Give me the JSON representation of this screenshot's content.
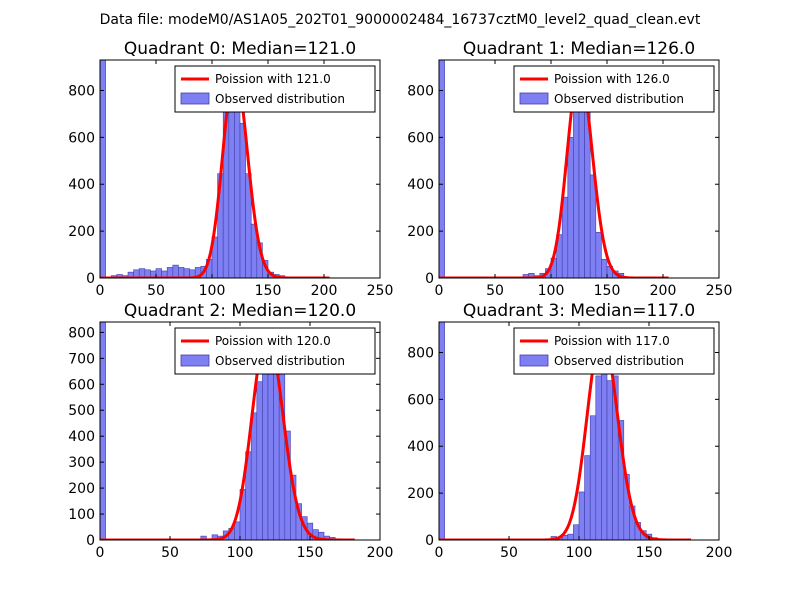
{
  "suptitle": "Data file: modeM0/AS1A05_202T01_9000002484_16737cztM0_level2_quad_clean.evt",
  "colors": {
    "hist_fill": "#7f7ff4",
    "hist_edge": "#3f3fa8",
    "poisson_line": "#ff0000",
    "axes": "#000000"
  },
  "chart_data": [
    {
      "type": "bar",
      "title": "Quadrant 0: Median=121.0",
      "median": 121.0,
      "xlim": [
        0,
        250
      ],
      "ylim": [
        0,
        930
      ],
      "xticks": [
        0,
        50,
        100,
        150,
        200,
        250
      ],
      "yticks": [
        0,
        200,
        400,
        600,
        800
      ],
      "legend": {
        "location": "top-right",
        "labels": [
          "Poission with 121.0",
          "Observed distribution"
        ]
      },
      "poisson": {
        "mean": 121.0,
        "peak": 880,
        "x_range": [
          0,
          205
        ]
      },
      "histogram": {
        "bin_width": 5,
        "bin_starts": [
          0,
          5,
          10,
          15,
          20,
          25,
          30,
          35,
          40,
          45,
          50,
          55,
          60,
          65,
          70,
          75,
          80,
          85,
          90,
          95,
          100,
          105,
          110,
          115,
          120,
          125,
          130,
          135,
          140,
          145,
          150,
          155,
          160,
          165,
          170,
          175,
          180,
          185,
          190,
          195,
          200,
          205
        ],
        "values": [
          930,
          0,
          10,
          15,
          10,
          25,
          35,
          40,
          35,
          30,
          40,
          30,
          45,
          55,
          45,
          40,
          35,
          45,
          50,
          80,
          175,
          445,
          735,
          860,
          880,
          660,
          445,
          230,
          150,
          75,
          25,
          15,
          10,
          5,
          5,
          0,
          0,
          0,
          0,
          0,
          0,
          0
        ]
      }
    },
    {
      "type": "bar",
      "title": "Quadrant 1: Median=126.0",
      "median": 126.0,
      "xlim": [
        0,
        250
      ],
      "ylim": [
        0,
        930
      ],
      "xticks": [
        0,
        50,
        100,
        150,
        200,
        250
      ],
      "yticks": [
        0,
        200,
        400,
        600,
        800
      ],
      "legend": {
        "location": "top-right",
        "labels": [
          "Poission with 126.0",
          "Observed distribution"
        ]
      },
      "poisson": {
        "mean": 126.0,
        "peak": 880,
        "x_range": [
          0,
          205
        ]
      },
      "histogram": {
        "bin_width": 5,
        "bin_starts": [
          0,
          5,
          10,
          15,
          20,
          25,
          30,
          35,
          40,
          45,
          50,
          55,
          60,
          65,
          70,
          75,
          80,
          85,
          90,
          95,
          100,
          105,
          110,
          115,
          120,
          125,
          130,
          135,
          140,
          145,
          150,
          155,
          160,
          165,
          170,
          175,
          180,
          185,
          190,
          195,
          200,
          205
        ],
        "values": [
          930,
          0,
          0,
          0,
          0,
          0,
          0,
          0,
          0,
          0,
          0,
          0,
          0,
          0,
          0,
          15,
          20,
          10,
          20,
          40,
          85,
          185,
          345,
          600,
          830,
          880,
          740,
          440,
          195,
          80,
          50,
          30,
          20,
          5,
          0,
          0,
          0,
          0,
          0,
          0,
          0,
          0
        ]
      }
    },
    {
      "type": "bar",
      "title": "Quadrant 2: Median=120.0",
      "median": 120.0,
      "xlim": [
        0,
        200
      ],
      "ylim": [
        0,
        840
      ],
      "xticks": [
        0,
        50,
        100,
        150,
        200
      ],
      "yticks": [
        0,
        100,
        200,
        300,
        400,
        500,
        600,
        700,
        800
      ],
      "legend": {
        "location": "top-right",
        "labels": [
          "Poission with 120.0",
          "Observed distribution"
        ]
      },
      "poisson": {
        "mean": 120.0,
        "peak": 800,
        "x_range": [
          0,
          182
        ]
      },
      "histogram": {
        "bin_width": 4,
        "bin_starts": [
          0,
          4,
          8,
          12,
          16,
          20,
          24,
          28,
          32,
          36,
          40,
          44,
          48,
          52,
          56,
          60,
          64,
          68,
          72,
          76,
          80,
          84,
          88,
          92,
          96,
          100,
          104,
          108,
          112,
          116,
          120,
          124,
          128,
          132,
          136,
          140,
          144,
          148,
          152,
          156,
          160,
          164,
          168,
          172,
          176,
          180
        ],
        "values": [
          840,
          0,
          0,
          0,
          0,
          0,
          0,
          0,
          0,
          0,
          0,
          0,
          0,
          0,
          0,
          0,
          0,
          0,
          15,
          5,
          20,
          15,
          35,
          45,
          70,
          195,
          340,
          490,
          610,
          740,
          790,
          760,
          690,
          420,
          250,
          140,
          90,
          65,
          40,
          30,
          15,
          10,
          5,
          0,
          0,
          0
        ]
      }
    },
    {
      "type": "bar",
      "title": "Quadrant 3: Median=117.0",
      "median": 117.0,
      "xlim": [
        0,
        200
      ],
      "ylim": [
        0,
        930
      ],
      "xticks": [
        0,
        50,
        100,
        150,
        200
      ],
      "yticks": [
        0,
        200,
        400,
        600,
        800
      ],
      "legend": {
        "location": "top-right",
        "labels": [
          "Poission with 117.0",
          "Observed distribution"
        ]
      },
      "poisson": {
        "mean": 117.0,
        "peak": 880,
        "x_range": [
          0,
          180
        ]
      },
      "histogram": {
        "bin_width": 4,
        "bin_starts": [
          0,
          4,
          8,
          12,
          16,
          20,
          24,
          28,
          32,
          36,
          40,
          44,
          48,
          52,
          56,
          60,
          64,
          68,
          72,
          76,
          80,
          84,
          88,
          92,
          96,
          100,
          104,
          108,
          112,
          116,
          120,
          124,
          128,
          132,
          136,
          140,
          144,
          148,
          152,
          156,
          160,
          164,
          168,
          172,
          176,
          180
        ],
        "values": [
          930,
          0,
          0,
          0,
          0,
          0,
          0,
          0,
          0,
          0,
          0,
          0,
          0,
          0,
          0,
          0,
          0,
          0,
          0,
          0,
          15,
          10,
          20,
          25,
          65,
          205,
          360,
          530,
          700,
          870,
          680,
          700,
          510,
          280,
          145,
          75,
          40,
          25,
          10,
          5,
          0,
          0,
          0,
          0,
          0,
          0
        ]
      }
    }
  ]
}
